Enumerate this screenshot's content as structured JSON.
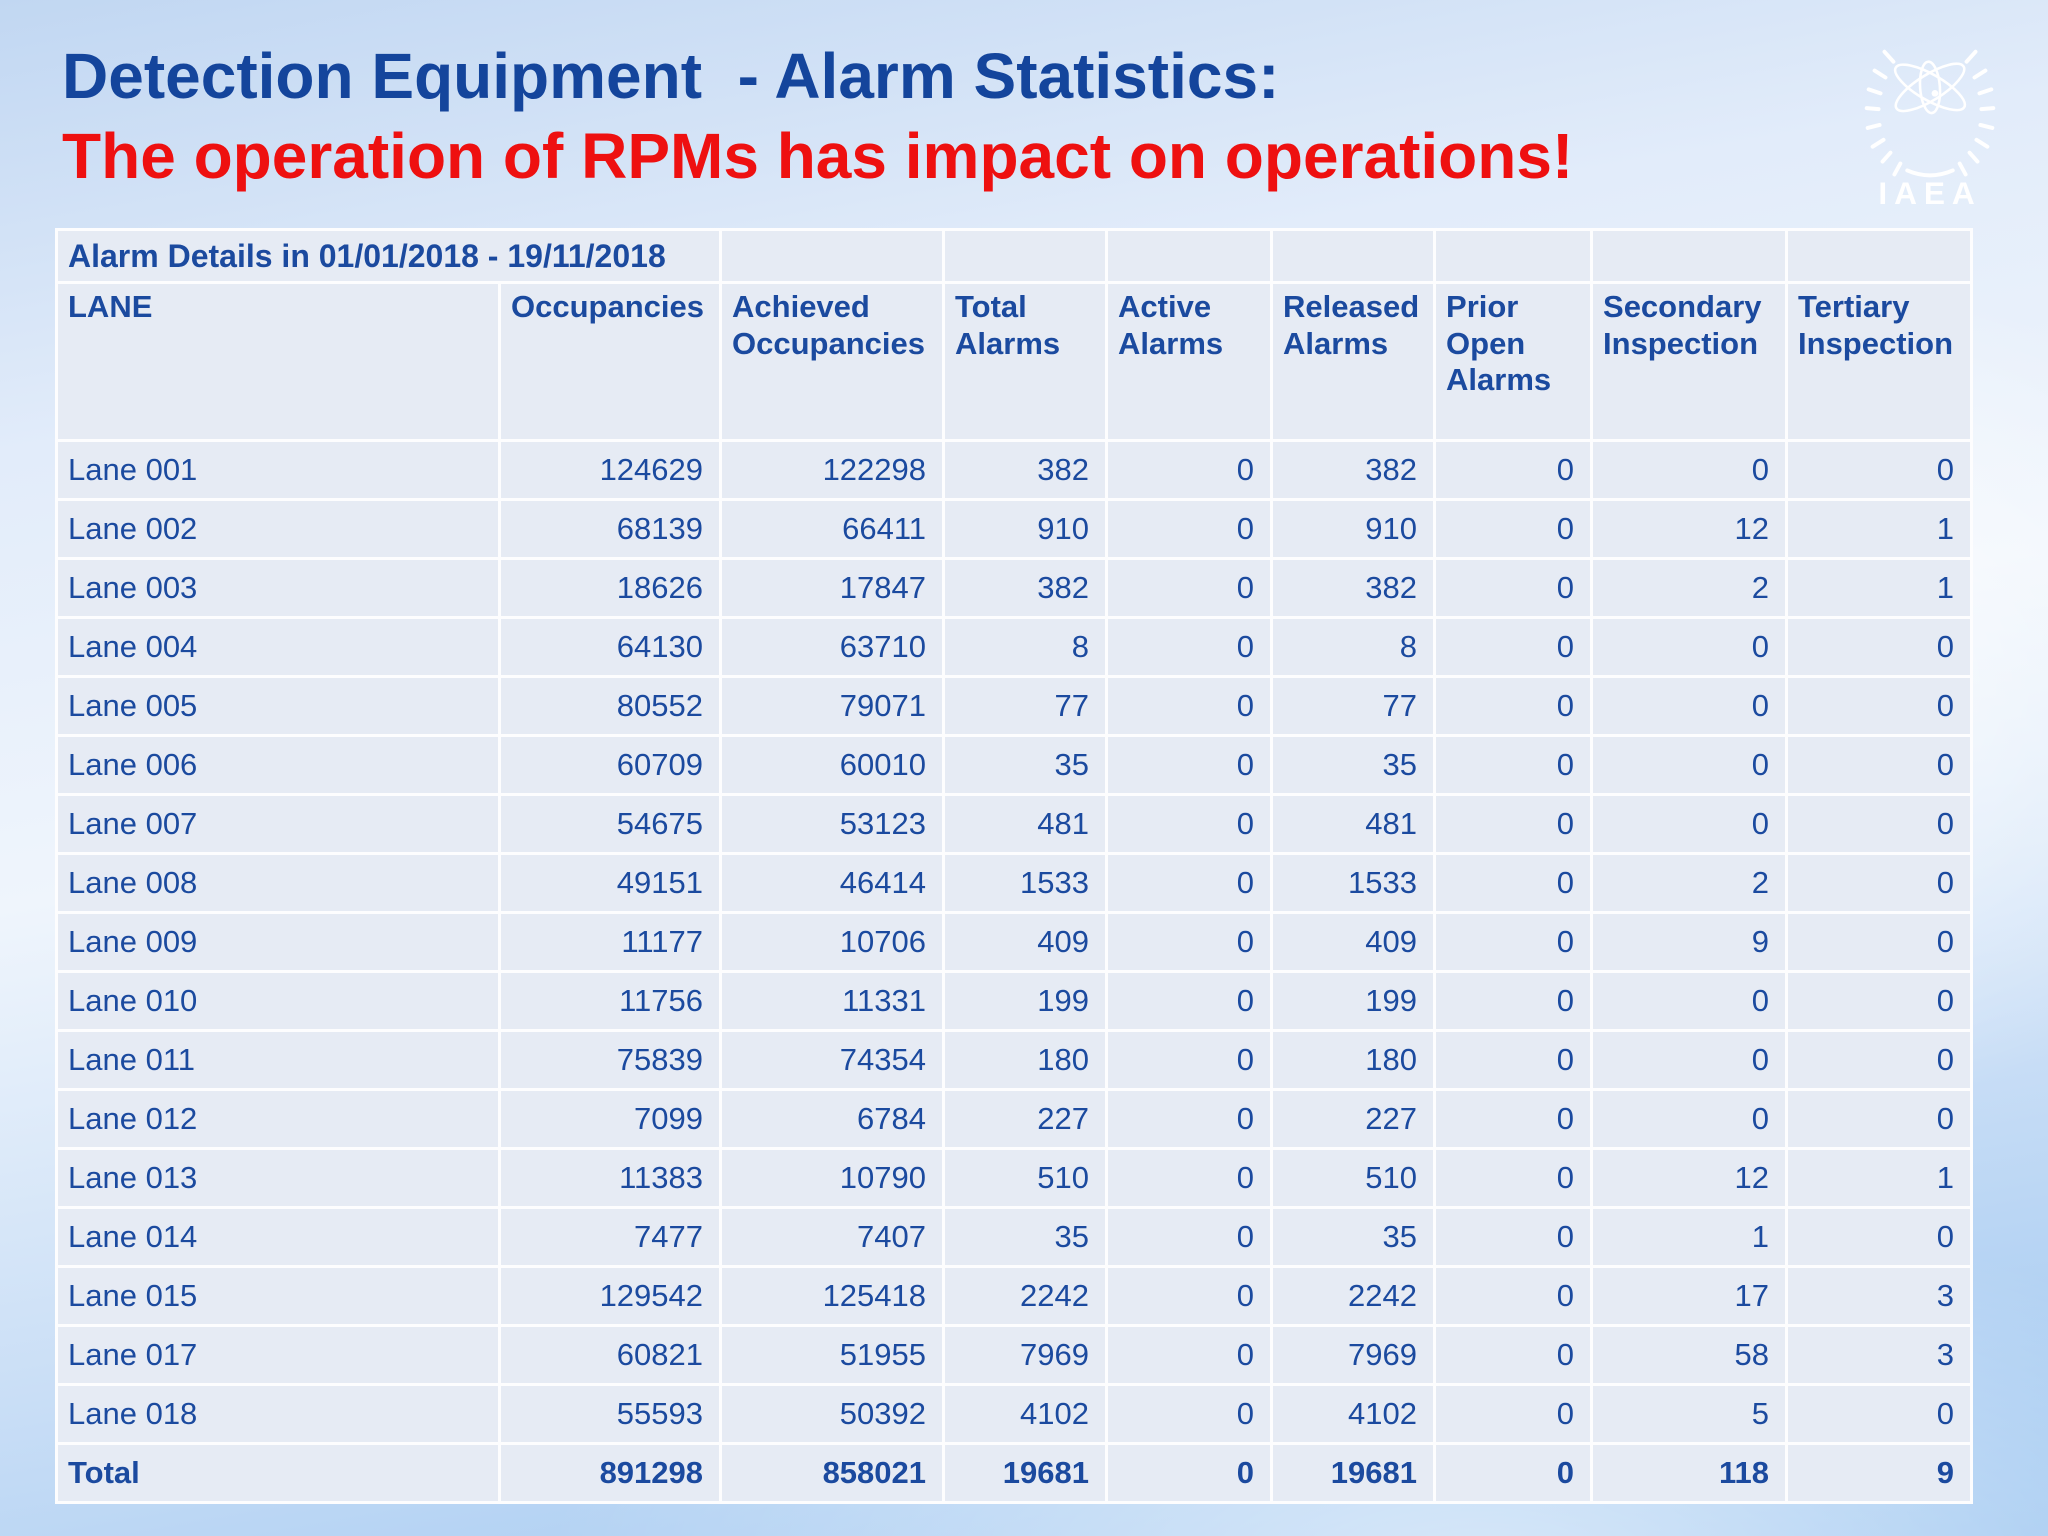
{
  "slide": {
    "title": "Detection Equipment  - Alarm Statistics:",
    "subtitle": "The operation of RPMs has impact on operations!",
    "logo_text": "IAEA"
  },
  "colors": {
    "title_blue": "#14459c",
    "subtitle_red": "#ee1010",
    "table_text_blue": "#1b4a9f",
    "cell_background": "#e6ebf4",
    "grid_line": "#fdfdfe",
    "background_blue_top": "#c1d7f2",
    "background_blue_bottom": "#9dc6f0",
    "logo_white": "#ffffff"
  },
  "table": {
    "caption": "Alarm Details in 01/01/2018 - 19/11/2018",
    "columns": [
      "LANE",
      "Occupancies",
      "Achieved\nOccupancies",
      "Total\nAlarms",
      "Active\nAlarms",
      "Released\nAlarms",
      "Prior\nOpen\nAlarms",
      "Secondary\nInspection",
      "Tertiary\nInspection"
    ],
    "rows": [
      {
        "lane": "Lane 001",
        "values": [
          124629,
          122298,
          382,
          0,
          382,
          0,
          0,
          0
        ]
      },
      {
        "lane": "Lane 002",
        "values": [
          68139,
          66411,
          910,
          0,
          910,
          0,
          12,
          1
        ]
      },
      {
        "lane": "Lane 003",
        "values": [
          18626,
          17847,
          382,
          0,
          382,
          0,
          2,
          1
        ]
      },
      {
        "lane": "Lane 004",
        "values": [
          64130,
          63710,
          8,
          0,
          8,
          0,
          0,
          0
        ]
      },
      {
        "lane": "Lane 005",
        "values": [
          80552,
          79071,
          77,
          0,
          77,
          0,
          0,
          0
        ]
      },
      {
        "lane": "Lane 006",
        "values": [
          60709,
          60010,
          35,
          0,
          35,
          0,
          0,
          0
        ]
      },
      {
        "lane": "Lane 007",
        "values": [
          54675,
          53123,
          481,
          0,
          481,
          0,
          0,
          0
        ]
      },
      {
        "lane": "Lane 008",
        "values": [
          49151,
          46414,
          1533,
          0,
          1533,
          0,
          2,
          0
        ]
      },
      {
        "lane": "Lane 009",
        "values": [
          11177,
          10706,
          409,
          0,
          409,
          0,
          9,
          0
        ]
      },
      {
        "lane": "Lane 010",
        "values": [
          11756,
          11331,
          199,
          0,
          199,
          0,
          0,
          0
        ]
      },
      {
        "lane": "Lane 011",
        "values": [
          75839,
          74354,
          180,
          0,
          180,
          0,
          0,
          0
        ]
      },
      {
        "lane": "Lane 012",
        "values": [
          7099,
          6784,
          227,
          0,
          227,
          0,
          0,
          0
        ]
      },
      {
        "lane": "Lane 013",
        "values": [
          11383,
          10790,
          510,
          0,
          510,
          0,
          12,
          1
        ]
      },
      {
        "lane": "Lane 014",
        "values": [
          7477,
          7407,
          35,
          0,
          35,
          0,
          1,
          0
        ]
      },
      {
        "lane": "Lane 015",
        "values": [
          129542,
          125418,
          2242,
          0,
          2242,
          0,
          17,
          3
        ]
      },
      {
        "lane": "Lane 017",
        "values": [
          60821,
          51955,
          7969,
          0,
          7969,
          0,
          58,
          3
        ]
      },
      {
        "lane": "Lane 018",
        "values": [
          55593,
          50392,
          4102,
          0,
          4102,
          0,
          5,
          0
        ]
      }
    ],
    "total_row": {
      "lane": "Total",
      "values": [
        891298,
        858021,
        19681,
        0,
        19681,
        0,
        118,
        9
      ]
    }
  },
  "chart_data": {
    "type": "table",
    "title": "Alarm Details in 01/01/2018 - 19/11/2018",
    "columns": [
      "LANE",
      "Occupancies",
      "Achieved Occupancies",
      "Total Alarms",
      "Active Alarms",
      "Released Alarms",
      "Prior Open Alarms",
      "Secondary Inspection",
      "Tertiary Inspection"
    ]
  }
}
